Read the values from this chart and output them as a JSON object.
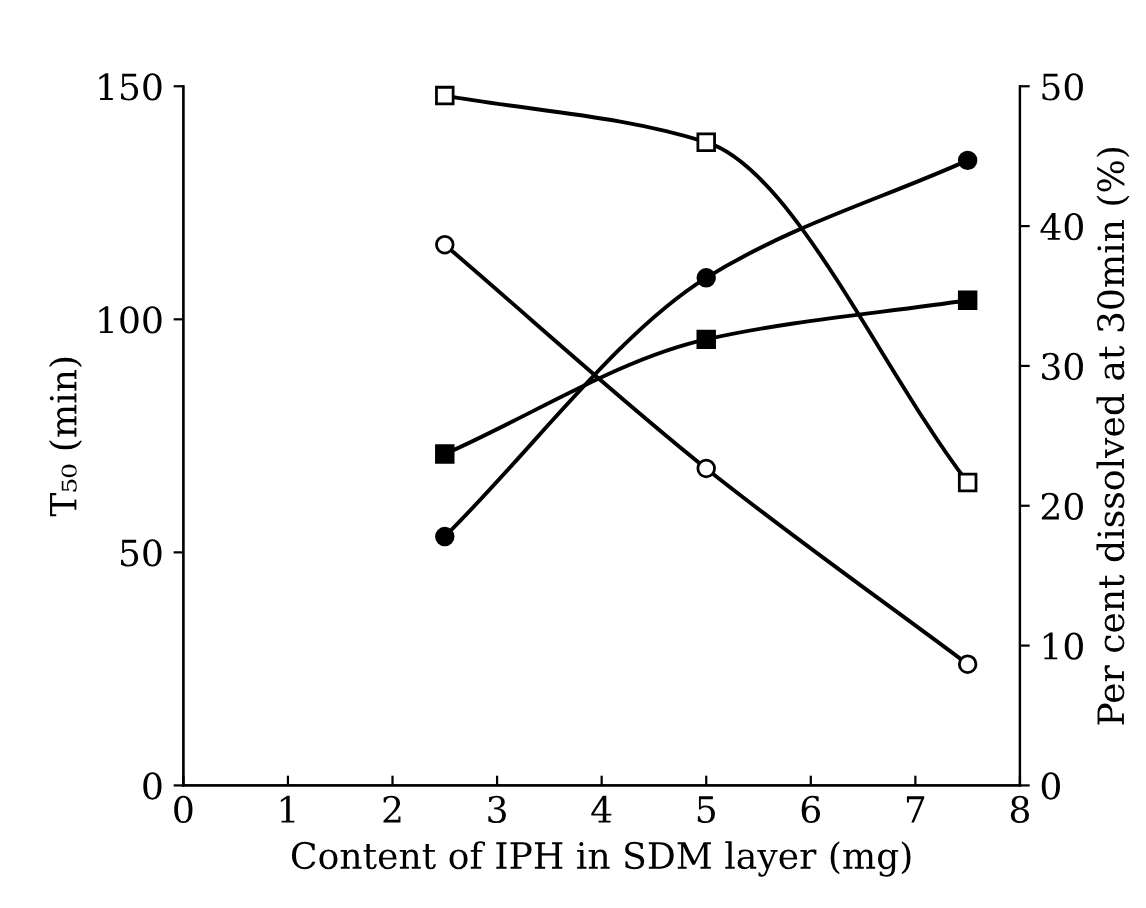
{
  "chart_data": {
    "type": "line",
    "xlabel": "Content of IPH in SDM layer (mg)",
    "ylabel": "T₅₀ (min)",
    "y2label": "Per cent dissolved at 30min (%)",
    "x": [
      2.5,
      5,
      7.5
    ],
    "series": [
      {
        "color": "#000000",
        "marker": "square",
        "values": [
          148,
          138,
          65
        ]
      },
      {
        "color": "#000000",
        "marker": "circle",
        "values": [
          116,
          68,
          26
        ]
      },
      {
        "color": "#000000",
        "marker": "square",
        "axis": "y2",
        "values": [
          23.7,
          31.9,
          34.7
        ]
      },
      {
        "color": "#000000",
        "marker": "circle",
        "axis": "y2",
        "values": [
          17.8,
          36.3,
          44.7
        ]
      }
    ],
    "xlim": [
      0,
      8
    ],
    "xticks": [
      0,
      1,
      2,
      3,
      4,
      5,
      6,
      7,
      8
    ],
    "ylim": [
      0,
      150
    ],
    "yticks": [
      0,
      50,
      100,
      150
    ],
    "y2lim": [
      0,
      50
    ],
    "y2ticks": [
      0,
      10,
      20,
      30,
      40,
      50
    ],
    "grid": false,
    "legend": false
  }
}
